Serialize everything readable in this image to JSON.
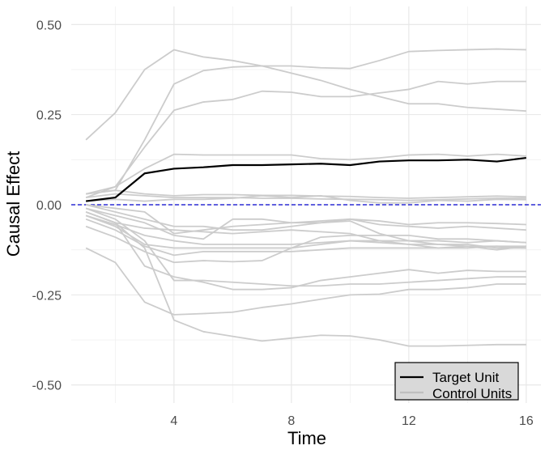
{
  "chart_data": {
    "type": "line",
    "title": "",
    "xlabel": "Time",
    "ylabel": "Causal Effect",
    "xlim": [
      0.5,
      16.5
    ],
    "ylim": [
      -0.55,
      0.55
    ],
    "x_ticks": [
      4,
      8,
      12,
      16
    ],
    "y_ticks": [
      0.5,
      0.25,
      0.0,
      -0.25,
      -0.5
    ],
    "y_tick_labels": [
      "0.50",
      "0.25",
      "0.00",
      "-0.25",
      "-0.50"
    ],
    "grid": true,
    "reference_line": {
      "y": 0,
      "color": "#0000cc",
      "style": "dashed"
    },
    "legend": {
      "position": "bottom-right",
      "entries": [
        {
          "label": "Target Unit",
          "color": "#000000"
        },
        {
          "label": "Control Units",
          "color": "#bfbfbf"
        }
      ]
    },
    "x": [
      1,
      2,
      3,
      4,
      5,
      6,
      7,
      8,
      9,
      10,
      11,
      12,
      13,
      14,
      15,
      16
    ],
    "target": {
      "color": "#000000",
      "values": [
        0.01,
        0.02,
        0.087,
        0.1,
        0.104,
        0.11,
        0.11,
        0.112,
        0.114,
        0.11,
        0.12,
        0.123,
        0.123,
        0.125,
        0.12,
        0.13
      ]
    },
    "controls": {
      "color": "#cccccc",
      "series": [
        [
          0.18,
          0.255,
          0.375,
          0.43,
          0.41,
          0.4,
          0.385,
          0.365,
          0.345,
          0.32,
          0.3,
          0.28,
          0.28,
          0.27,
          0.265,
          0.26
        ],
        [
          0.03,
          0.04,
          0.18,
          0.335,
          0.372,
          0.382,
          0.385,
          0.385,
          0.38,
          0.378,
          0.4,
          0.425,
          0.428,
          0.43,
          0.432,
          0.43
        ],
        [
          0.03,
          0.05,
          0.16,
          0.262,
          0.285,
          0.292,
          0.315,
          0.312,
          0.3,
          0.3,
          0.31,
          0.32,
          0.342,
          0.335,
          0.342,
          0.342
        ],
        [
          0.02,
          0.05,
          0.1,
          0.14,
          0.138,
          0.138,
          0.138,
          0.138,
          0.128,
          0.125,
          0.13,
          0.138,
          0.14,
          0.135,
          0.14,
          0.135
        ],
        [
          0.03,
          0.04,
          0.03,
          0.025,
          0.028,
          0.028,
          0.026,
          0.026,
          0.024,
          0.023,
          0.02,
          0.018,
          0.02,
          0.022,
          0.024,
          0.022
        ],
        [
          0.02,
          0.03,
          0.025,
          0.02,
          0.02,
          0.02,
          0.018,
          0.018,
          0.016,
          0.015,
          0.014,
          0.012,
          0.014,
          0.016,
          0.018,
          0.018
        ],
        [
          0.01,
          0.015,
          0.01,
          0.015,
          0.015,
          0.018,
          0.025,
          0.02,
          0.025,
          0.012,
          0.005,
          0.005,
          0.012,
          0.01,
          0.015,
          0.014
        ],
        [
          0.0,
          -0.01,
          -0.02,
          -0.08,
          -0.07,
          -0.06,
          -0.055,
          -0.05,
          -0.045,
          -0.04,
          -0.055,
          -0.06,
          -0.065,
          -0.06,
          -0.065,
          -0.07
        ],
        [
          0.0,
          -0.02,
          -0.04,
          -0.06,
          -0.06,
          -0.07,
          -0.07,
          -0.06,
          -0.05,
          -0.045,
          -0.08,
          -0.1,
          -0.11,
          -0.11,
          -0.12,
          -0.12
        ],
        [
          -0.01,
          -0.03,
          -0.05,
          -0.085,
          -0.095,
          -0.04,
          -0.04,
          -0.05,
          -0.05,
          -0.04,
          -0.045,
          -0.055,
          -0.05,
          -0.05,
          -0.052,
          -0.055
        ],
        [
          -0.02,
          -0.05,
          -0.065,
          -0.07,
          -0.075,
          -0.08,
          -0.075,
          -0.07,
          -0.075,
          -0.08,
          -0.1,
          -0.1,
          -0.1,
          -0.105,
          -0.1,
          -0.105
        ],
        [
          -0.03,
          -0.055,
          -0.085,
          -0.1,
          -0.11,
          -0.11,
          -0.11,
          -0.11,
          -0.105,
          -0.1,
          -0.105,
          -0.11,
          -0.11,
          -0.115,
          -0.115,
          -0.12
        ],
        [
          -0.03,
          -0.06,
          -0.11,
          -0.12,
          -0.12,
          -0.12,
          -0.12,
          -0.12,
          -0.11,
          -0.1,
          -0.1,
          -0.11,
          -0.12,
          -0.115,
          -0.125,
          -0.115
        ],
        [
          -0.04,
          -0.07,
          -0.115,
          -0.14,
          -0.13,
          -0.13,
          -0.13,
          -0.13,
          -0.125,
          -0.12,
          -0.12,
          -0.12,
          -0.12,
          -0.12,
          -0.115,
          -0.115
        ],
        [
          -0.06,
          -0.09,
          -0.13,
          -0.16,
          -0.155,
          -0.158,
          -0.155,
          -0.12,
          -0.09,
          -0.085,
          -0.085,
          -0.085,
          -0.095,
          -0.095,
          -0.1,
          -0.105
        ],
        [
          -0.12,
          -0.16,
          -0.27,
          -0.305,
          -0.302,
          -0.298,
          -0.285,
          -0.275,
          -0.262,
          -0.25,
          -0.248,
          -0.235,
          -0.235,
          -0.23,
          -0.22,
          -0.22
        ],
        [
          -0.02,
          -0.05,
          -0.17,
          -0.2,
          -0.215,
          -0.235,
          -0.235,
          -0.23,
          -0.21,
          -0.2,
          -0.19,
          -0.18,
          -0.19,
          -0.182,
          -0.185,
          -0.185
        ],
        [
          -0.02,
          -0.05,
          -0.12,
          -0.32,
          -0.352,
          -0.365,
          -0.378,
          -0.37,
          -0.362,
          -0.364,
          -0.375,
          -0.392,
          -0.392,
          -0.39,
          -0.388,
          -0.388
        ],
        [
          -0.01,
          -0.04,
          -0.1,
          -0.21,
          -0.21,
          -0.215,
          -0.22,
          -0.225,
          -0.225,
          -0.22,
          -0.22,
          -0.215,
          -0.21,
          -0.205,
          -0.2,
          -0.2
        ]
      ]
    }
  }
}
